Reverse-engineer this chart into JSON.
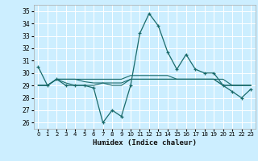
{
  "title": "",
  "xlabel": "Humidex (Indice chaleur)",
  "bg_color": "#cceeff",
  "grid_color": "#ffffff",
  "line_color": "#1a6b6b",
  "ylim": [
    25.5,
    35.5
  ],
  "xlim": [
    -0.5,
    23.5
  ],
  "yticks": [
    26,
    27,
    28,
    29,
    30,
    31,
    32,
    33,
    34,
    35
  ],
  "xticks": [
    0,
    1,
    2,
    3,
    4,
    5,
    6,
    7,
    8,
    9,
    10,
    11,
    12,
    13,
    14,
    15,
    16,
    17,
    18,
    19,
    20,
    21,
    22,
    23
  ],
  "series": [
    [
      30.5,
      29.0,
      29.5,
      29.0,
      29.0,
      29.0,
      28.8,
      26.0,
      27.0,
      26.5,
      29.0,
      33.2,
      34.8,
      33.8,
      31.7,
      30.3,
      31.5,
      30.3,
      30.0,
      30.0,
      29.0,
      28.5,
      28.0,
      28.7
    ],
    [
      29.0,
      29.0,
      29.5,
      29.2,
      29.0,
      29.0,
      29.0,
      29.2,
      29.0,
      29.0,
      29.5,
      29.5,
      29.5,
      29.5,
      29.5,
      29.5,
      29.5,
      29.5,
      29.5,
      29.5,
      29.5,
      29.0,
      29.0,
      29.0
    ],
    [
      29.0,
      29.0,
      29.5,
      29.5,
      29.5,
      29.5,
      29.5,
      29.5,
      29.5,
      29.5,
      29.8,
      29.8,
      29.8,
      29.8,
      29.8,
      29.5,
      29.5,
      29.5,
      29.5,
      29.5,
      29.0,
      29.0,
      29.0,
      29.0
    ],
    [
      29.0,
      29.0,
      29.5,
      29.5,
      29.5,
      29.3,
      29.2,
      29.2,
      29.2,
      29.2,
      29.5,
      29.5,
      29.5,
      29.5,
      29.5,
      29.5,
      29.5,
      29.5,
      29.5,
      29.5,
      29.0,
      29.0,
      29.0,
      29.0
    ]
  ],
  "tick_fontsize": 5.5,
  "xlabel_fontsize": 6.5
}
